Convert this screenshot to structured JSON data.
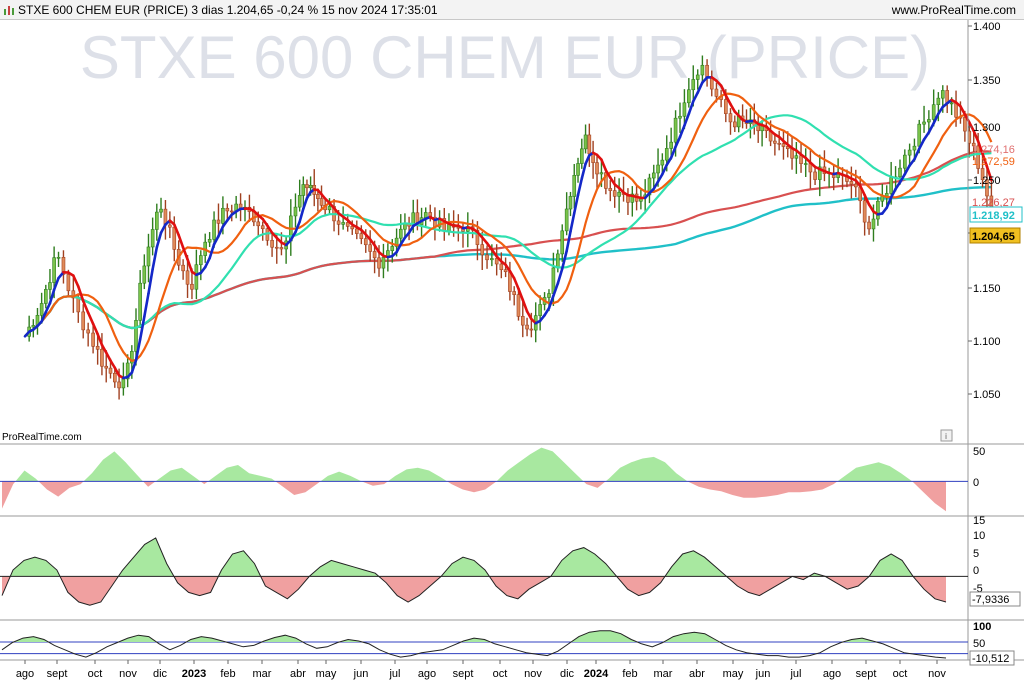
{
  "header": {
    "title": "STXE 600 CHEM EUR (PRICE) 3 dias 1.204,65 -0,24 % 15 nov 2024 17:35:01",
    "site": "www.ProRealTime.com"
  },
  "watermark": "STXE 600 CHEM EUR (PRICE)",
  "brand_label": "ProRealTime.com",
  "info_icon": "i",
  "chart_data": [
    {
      "type": "candlestick",
      "y_ticks": [
        "1.400",
        "1.350",
        "1.300",
        "1.250",
        "1.200",
        "1.150",
        "1.100",
        "1.050"
      ],
      "ylim": [
        1020,
        1405
      ],
      "x_labels": [
        "ago",
        "sept",
        "oct",
        "nov",
        "dic",
        "2023",
        "feb",
        "mar",
        "abr",
        "may",
        "jun",
        "jul",
        "ago",
        "sept",
        "oct",
        "nov",
        "dic",
        "2024",
        "feb",
        "mar",
        "abr",
        "may",
        "jun",
        "jul",
        "ago",
        "sept",
        "oct",
        "nov"
      ],
      "price_path": [
        [
          0,
          1105
        ],
        [
          0.5,
          1135
        ],
        [
          1.0,
          1183
        ],
        [
          1.5,
          1130
        ],
        [
          2.3,
          1075
        ],
        [
          2.9,
          1057
        ],
        [
          3.2,
          1110
        ],
        [
          3.5,
          1175
        ],
        [
          4.0,
          1232
        ],
        [
          4.5,
          1180
        ],
        [
          4.9,
          1150
        ],
        [
          5.3,
          1195
        ],
        [
          5.8,
          1220
        ],
        [
          6.2,
          1230
        ],
        [
          6.8,
          1218
        ],
        [
          7.3,
          1195
        ],
        [
          7.6,
          1183
        ],
        [
          7.9,
          1228
        ],
        [
          8.2,
          1250
        ],
        [
          8.6,
          1240
        ],
        [
          9.1,
          1225
        ],
        [
          9.6,
          1205
        ],
        [
          10.1,
          1190
        ],
        [
          10.5,
          1175
        ],
        [
          11.0,
          1198
        ],
        [
          11.5,
          1215
        ],
        [
          12.0,
          1222
        ],
        [
          12.5,
          1205
        ],
        [
          13.0,
          1210
        ],
        [
          13.4,
          1195
        ],
        [
          13.8,
          1175
        ],
        [
          14.2,
          1160
        ],
        [
          14.6,
          1125
        ],
        [
          14.9,
          1115
        ],
        [
          15.4,
          1140
        ],
        [
          15.8,
          1200
        ],
        [
          16.2,
          1255
        ],
        [
          16.6,
          1295
        ],
        [
          17.0,
          1268
        ],
        [
          17.4,
          1245
        ],
        [
          17.9,
          1240
        ],
        [
          18.3,
          1232
        ],
        [
          18.8,
          1262
        ],
        [
          19.3,
          1300
        ],
        [
          19.7,
          1340
        ],
        [
          20.1,
          1365
        ],
        [
          20.5,
          1335
        ],
        [
          20.9,
          1310
        ],
        [
          21.4,
          1308
        ],
        [
          21.9,
          1300
        ],
        [
          22.5,
          1285
        ],
        [
          23.0,
          1270
        ],
        [
          23.5,
          1260
        ],
        [
          24.0,
          1258
        ],
        [
          24.6,
          1250
        ],
        [
          25.1,
          1208
        ],
        [
          25.6,
          1245
        ],
        [
          26.1,
          1275
        ],
        [
          26.6,
          1305
        ],
        [
          27.1,
          1340
        ],
        [
          27.5,
          1320
        ],
        [
          27.8,
          1300
        ],
        [
          28.1,
          1280
        ],
        [
          28.4,
          1250
        ],
        [
          28.7,
          1205
        ]
      ],
      "moving_averages": [
        {
          "name": "MA short (blue/red)",
          "color": "#1428c8",
          "color_down": "#e01010"
        },
        {
          "name": "MA 20",
          "color": "#f06010"
        },
        {
          "name": "MA 50",
          "color": "#30e0b0"
        },
        {
          "name": "MA 100",
          "color": "#d85050"
        },
        {
          "name": "MA 200",
          "color": "#20c0c8"
        }
      ],
      "price_labels": [
        {
          "text": "1.274,16",
          "color": "#e07070"
        },
        {
          "text": "1.272,59",
          "color": "#f06010"
        },
        {
          "text": "1.226,27",
          "color": "#d85050"
        },
        {
          "text": "1.218,92",
          "color": "#20c0c8"
        },
        {
          "text": "1.204,65",
          "color": "#f0c020"
        }
      ]
    },
    {
      "type": "area",
      "y_ticks": [
        "50",
        "0"
      ],
      "ylim": [
        -60,
        65
      ],
      "series": [
        {
          "values": [
            -50,
            -5,
            20,
            5,
            -15,
            -28,
            -12,
            -5,
            15,
            40,
            55,
            35,
            12,
            -10,
            5,
            20,
            25,
            10,
            -5,
            10,
            25,
            30,
            15,
            10,
            5,
            -10,
            -25,
            -20,
            -5,
            10,
            18,
            10,
            0,
            -8,
            -5,
            10,
            22,
            25,
            20,
            8,
            -5,
            -15,
            -20,
            -15,
            0,
            20,
            35,
            50,
            62,
            55,
            35,
            15,
            -5,
            -12,
            5,
            25,
            35,
            42,
            45,
            35,
            15,
            0,
            -10,
            -15,
            -18,
            -25,
            -30,
            -30,
            -28,
            -25,
            -20,
            -20,
            -18,
            -15,
            -5,
            10,
            25,
            30,
            35,
            28,
            15,
            0,
            -20,
            -40,
            -55
          ]
        }
      ]
    },
    {
      "type": "area",
      "y_ticks": [
        "15",
        "10",
        "5",
        "0",
        "-5"
      ],
      "ylim": [
        -13,
        17
      ],
      "value_label": "-7,9336",
      "series": [
        {
          "values": [
            -6,
            2,
            5,
            6,
            5,
            2,
            -5,
            -8,
            -9,
            -8,
            -3,
            2,
            6,
            10,
            12,
            4,
            -2,
            -5,
            -6,
            -5,
            2,
            7,
            8,
            4,
            -3,
            -5,
            -7,
            -4,
            0,
            3,
            5,
            4,
            3,
            2,
            1,
            -2,
            -6,
            -8,
            -6,
            -3,
            0,
            4,
            6,
            5,
            2,
            -3,
            -6,
            -7,
            -4,
            -2,
            0,
            5,
            8,
            9,
            7,
            4,
            0,
            -4,
            -6,
            -5,
            -2,
            3,
            7,
            8,
            6,
            3,
            0,
            -3,
            -5,
            -6,
            -4,
            -2,
            0,
            -1,
            1,
            0,
            -2,
            -4,
            -3,
            0,
            5,
            7,
            5,
            0,
            -4,
            -7,
            -8
          ]
        }
      ]
    },
    {
      "type": "line",
      "y_ticks": [
        "100",
        "50"
      ],
      "ylim": [
        -15,
        115
      ],
      "value_label": "-10,512",
      "series": [
        {
          "values": [
            20,
            45,
            60,
            65,
            55,
            35,
            20,
            5,
            -5,
            10,
            30,
            45,
            60,
            70,
            65,
            40,
            20,
            35,
            55,
            65,
            60,
            50,
            40,
            30,
            35,
            50,
            62,
            70,
            60,
            40,
            25,
            30,
            45,
            55,
            50,
            40,
            20,
            5,
            -5,
            0,
            10,
            15,
            20,
            35,
            50,
            60,
            55,
            40,
            30,
            20,
            10,
            5,
            0,
            15,
            40,
            65,
            80,
            85,
            85,
            75,
            55,
            40,
            30,
            45,
            65,
            75,
            80,
            75,
            55,
            35,
            20,
            10,
            5,
            0,
            0,
            -5,
            -5,
            0,
            10,
            30,
            45,
            55,
            60,
            50,
            40,
            25,
            10,
            5,
            0,
            -5,
            -8
          ]
        }
      ]
    }
  ]
}
